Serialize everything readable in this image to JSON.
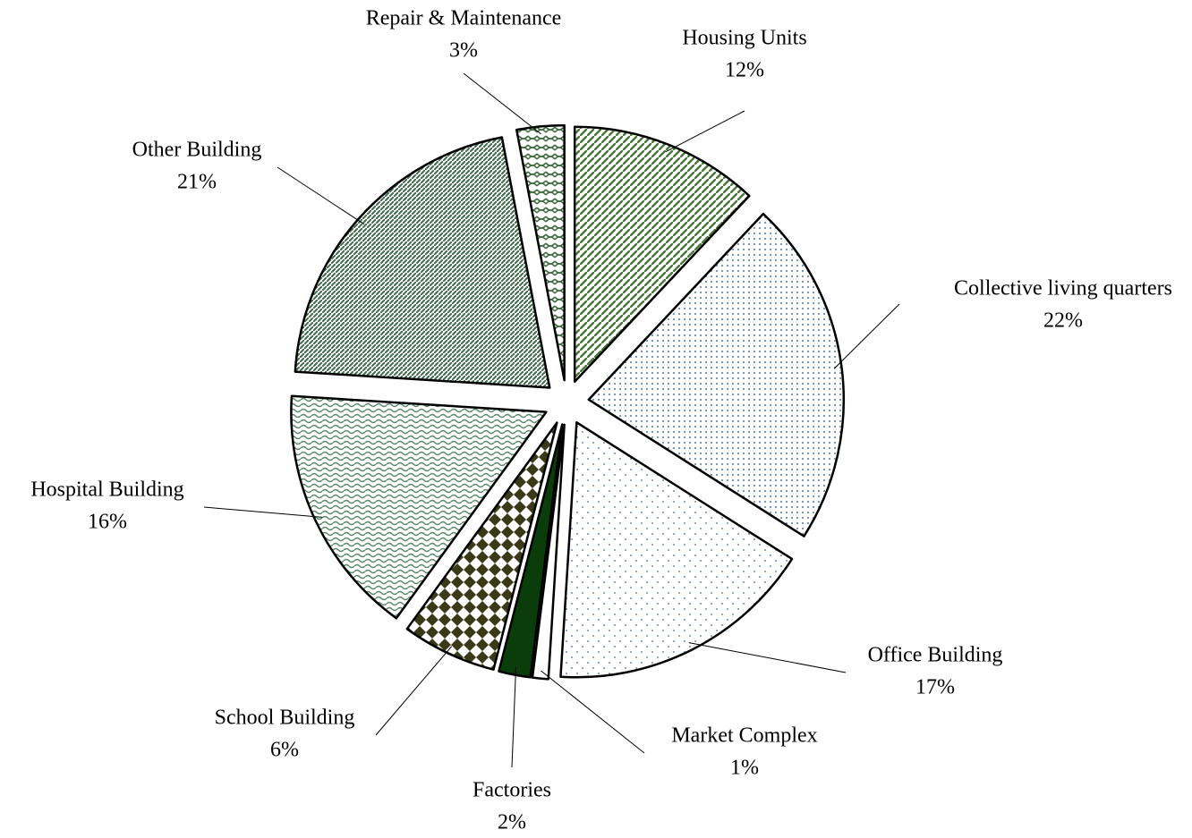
{
  "chart_data": {
    "type": "pie",
    "categories": [
      "Housing Units",
      "Collective living quarters",
      "Office Building",
      "Market Complex",
      "Factories",
      "School Building",
      "Hospital Building",
      "Other Building",
      "Repair & Maintenance"
    ],
    "values": [
      12,
      22,
      17,
      1,
      2,
      6,
      16,
      21,
      3
    ],
    "value_labels": [
      "12%",
      "22%",
      "17%",
      "1%",
      "2%",
      "6%",
      "16%",
      "21%",
      "3%"
    ],
    "colors": [
      "#4a7a3a",
      "#6f8fb0",
      "#6f8fb0",
      "#ffffff",
      "#0b3d0b",
      "#3a3a18",
      "#5a8a6a",
      "#3e6b4a",
      "#3e6b3e"
    ]
  }
}
